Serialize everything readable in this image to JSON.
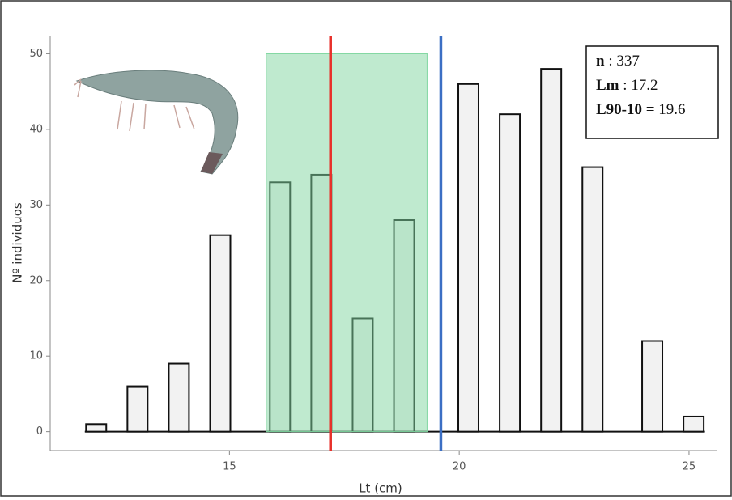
{
  "chart_data": {
    "type": "bar",
    "x_label": "Lt (cm)",
    "y_label": "Nº individuos",
    "x": [
      12.1,
      13.0,
      13.9,
      14.8,
      16.1,
      17.0,
      17.9,
      18.8,
      20.2,
      21.1,
      22.0,
      22.9,
      24.2,
      25.1
    ],
    "values": [
      1,
      6,
      9,
      26,
      33,
      34,
      15,
      28,
      46,
      42,
      48,
      35,
      12,
      2
    ],
    "bar_width": 0.44,
    "color": "#f2f2f2",
    "edge_color": "#111111",
    "shaded_range": [
      15.8,
      19.3
    ],
    "shaded_color": "#7fd6a0",
    "vlines": [
      {
        "value": 17.2,
        "color": "#e8302a"
      },
      {
        "value": 19.6,
        "color": "#3b6fc4"
      }
    ],
    "annotations": [
      {
        "label": "n",
        "separator": ":",
        "value": 337
      },
      {
        "label": "Lm",
        "separator": ":",
        "value": 17.2
      },
      {
        "label": "L90-10",
        "separator": "=",
        "value": 19.6
      }
    ],
    "xlim": [
      11.1,
      25.6
    ],
    "ylim": [
      -2.5,
      52.4
    ],
    "xticks": [
      15,
      20,
      25
    ],
    "yticks": [
      0,
      10,
      20,
      30,
      40,
      50
    ]
  }
}
